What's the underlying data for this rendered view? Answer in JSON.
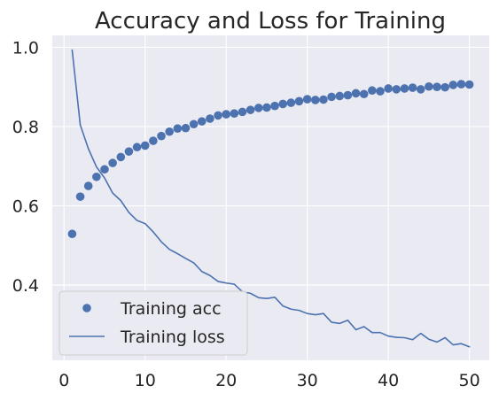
{
  "chart_data": {
    "type": "line",
    "title": "Accuracy and Loss for Training",
    "xlabel": "",
    "ylabel": "",
    "xlim": [
      -1.45,
      52.45
    ],
    "ylim": [
      0.21,
      1.03
    ],
    "xticks": [
      0,
      10,
      20,
      30,
      40,
      50
    ],
    "yticks": [
      0.4,
      0.6,
      0.8,
      1.0
    ],
    "xtick_labels": [
      "0",
      "10",
      "20",
      "30",
      "40",
      "50"
    ],
    "ytick_labels": [
      "0.4",
      "0.6",
      "0.8",
      "1.0"
    ],
    "grid": true,
    "legend_position": "lower-left",
    "background_color": "#eaeaf2",
    "series_color": "#4c72b0",
    "x": [
      1,
      2,
      3,
      4,
      5,
      6,
      7,
      8,
      9,
      10,
      11,
      12,
      13,
      14,
      15,
      16,
      17,
      18,
      19,
      20,
      21,
      22,
      23,
      24,
      25,
      26,
      27,
      28,
      29,
      30,
      31,
      32,
      33,
      34,
      35,
      36,
      37,
      38,
      39,
      40,
      41,
      42,
      43,
      44,
      45,
      46,
      47,
      48,
      49,
      50
    ],
    "series": [
      {
        "name": "Training acc",
        "style": "markers",
        "values": [
          0.529,
          0.623,
          0.65,
          0.673,
          0.692,
          0.708,
          0.723,
          0.737,
          0.748,
          0.752,
          0.764,
          0.776,
          0.787,
          0.795,
          0.796,
          0.806,
          0.813,
          0.82,
          0.828,
          0.831,
          0.833,
          0.837,
          0.842,
          0.847,
          0.848,
          0.852,
          0.857,
          0.86,
          0.864,
          0.869,
          0.867,
          0.868,
          0.875,
          0.877,
          0.879,
          0.884,
          0.882,
          0.891,
          0.889,
          0.896,
          0.894,
          0.896,
          0.898,
          0.894,
          0.901,
          0.9,
          0.899,
          0.905,
          0.907,
          0.906
        ]
      },
      {
        "name": "Training loss",
        "style": "line",
        "values": [
          0.993,
          0.804,
          0.744,
          0.698,
          0.67,
          0.632,
          0.613,
          0.583,
          0.563,
          0.555,
          0.534,
          0.509,
          0.49,
          0.479,
          0.467,
          0.456,
          0.434,
          0.424,
          0.409,
          0.405,
          0.402,
          0.383,
          0.379,
          0.368,
          0.366,
          0.369,
          0.347,
          0.339,
          0.336,
          0.328,
          0.325,
          0.328,
          0.306,
          0.303,
          0.311,
          0.287,
          0.295,
          0.28,
          0.28,
          0.271,
          0.268,
          0.267,
          0.262,
          0.278,
          0.263,
          0.256,
          0.267,
          0.249,
          0.252,
          0.244
        ]
      }
    ]
  }
}
